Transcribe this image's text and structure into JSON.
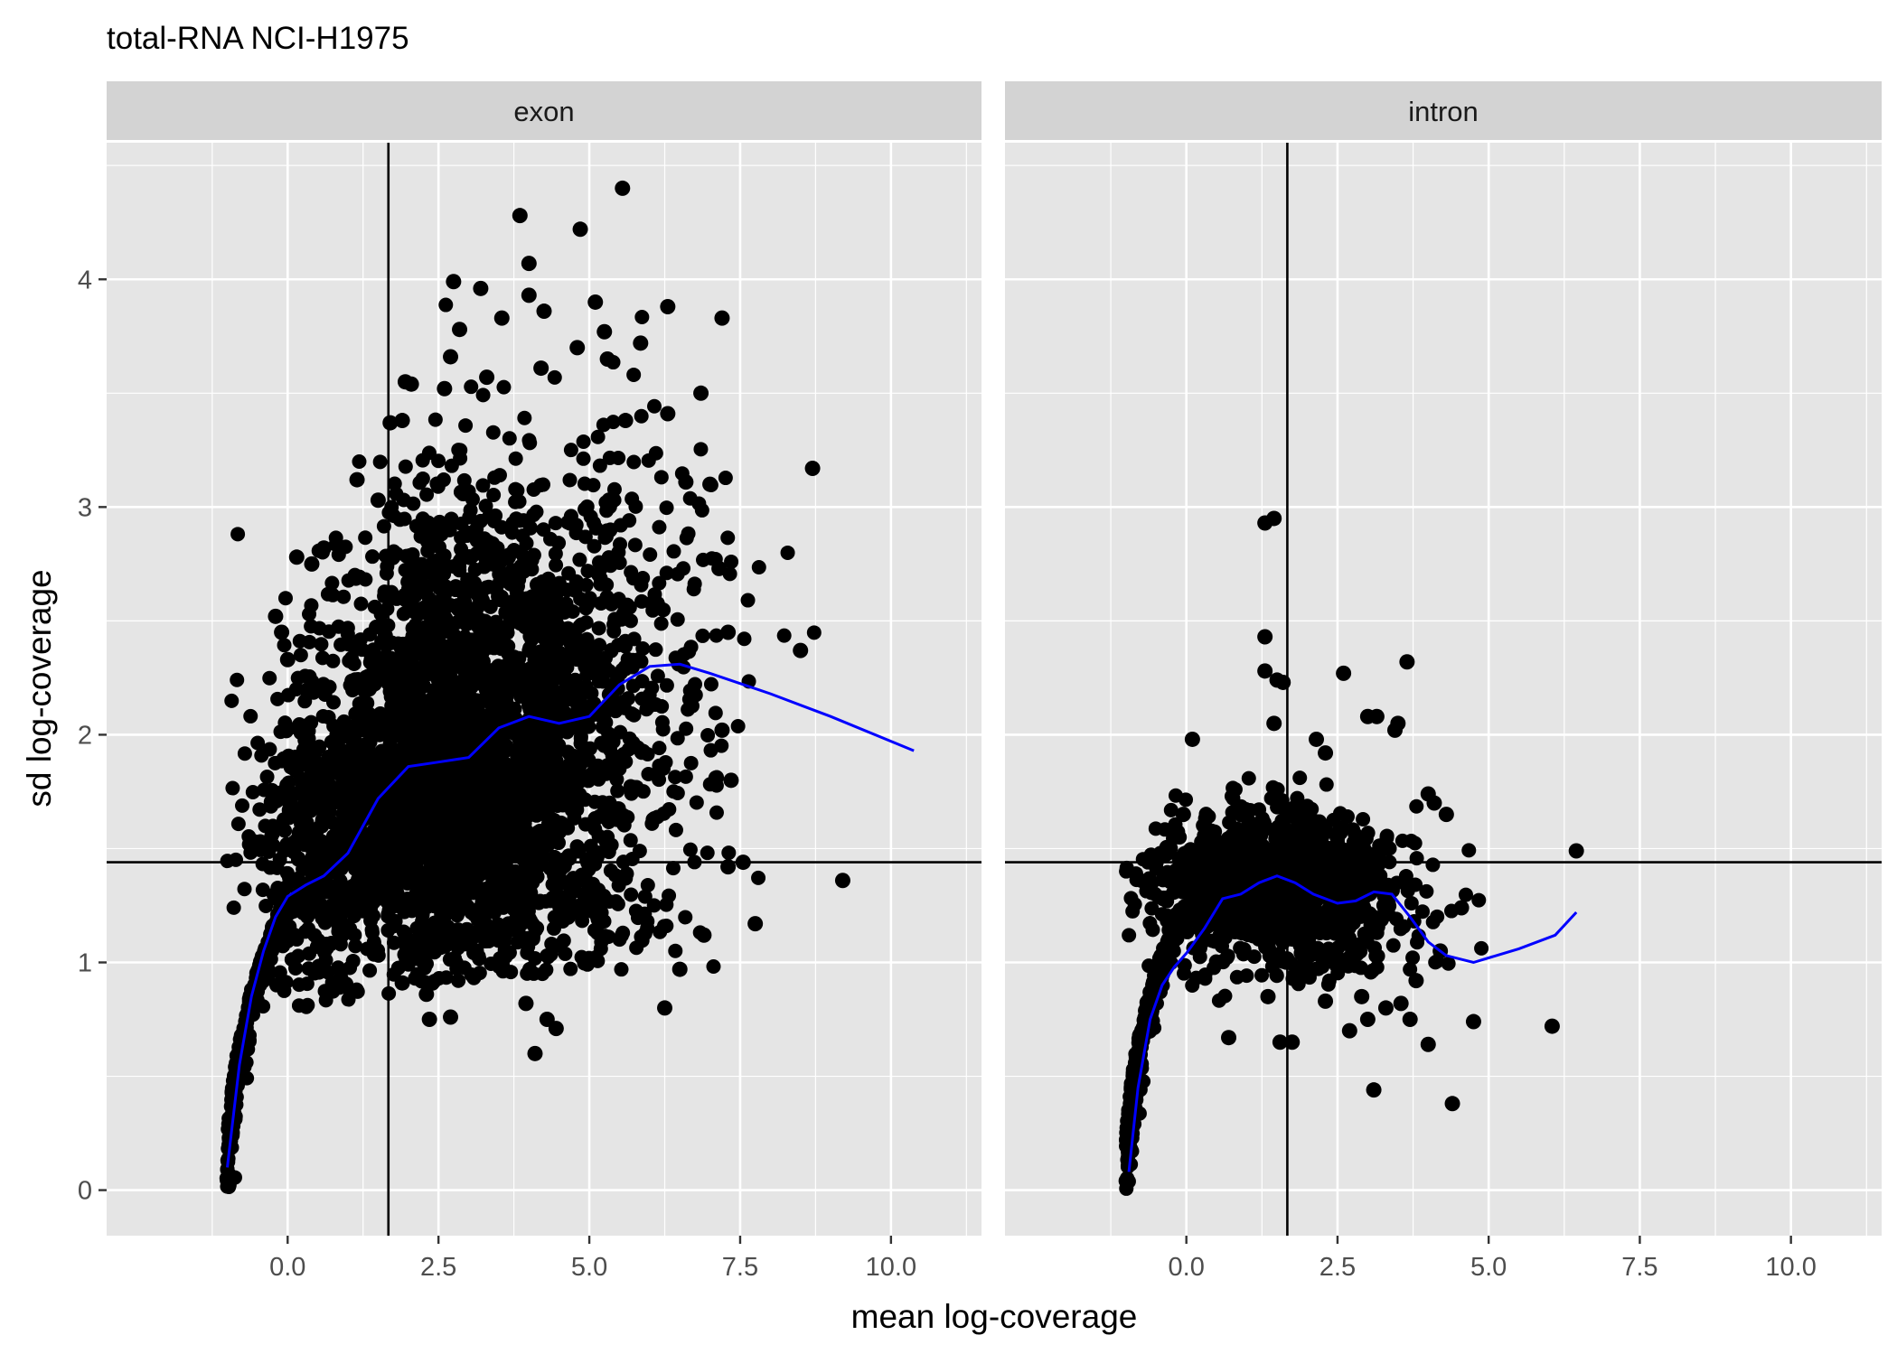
{
  "chart_data": {
    "type": "scatter",
    "title": "total-RNA NCI-H1975",
    "xlabel": "mean log-coverage",
    "ylabel": "sd log-coverage",
    "xlim": [
      -3.0,
      11.5
    ],
    "ylim": [
      -0.2,
      4.6
    ],
    "x_ticks": [
      0.0,
      2.5,
      5.0,
      7.5,
      10.0
    ],
    "x_tick_labels": [
      "0.0",
      "2.5",
      "5.0",
      "7.5",
      "10.0"
    ],
    "y_ticks": [
      0,
      1,
      2,
      3,
      4
    ],
    "y_tick_labels": [
      "0",
      "1",
      "2",
      "3",
      "4"
    ],
    "reference_lines": {
      "vertical_x": 1.67,
      "horizontal_y": 1.44
    },
    "colors": {
      "panel_bg": "#e5e5e5",
      "strip_bg": "#d3d3d3",
      "grid": "#ffffff",
      "points": "#000000",
      "smooth": "#0000ff",
      "ref_line": "#000000"
    },
    "grid": true,
    "legend": "none",
    "panels": [
      {
        "name": "exon",
        "smooth": [
          [
            -1.0,
            0.1
          ],
          [
            -0.8,
            0.55
          ],
          [
            -0.6,
            0.85
          ],
          [
            -0.4,
            1.05
          ],
          [
            -0.2,
            1.2
          ],
          [
            0.0,
            1.29
          ],
          [
            0.3,
            1.34
          ],
          [
            0.6,
            1.38
          ],
          [
            1.0,
            1.48
          ],
          [
            1.5,
            1.72
          ],
          [
            2.0,
            1.86
          ],
          [
            2.5,
            1.88
          ],
          [
            3.0,
            1.9
          ],
          [
            3.5,
            2.03
          ],
          [
            4.0,
            2.08
          ],
          [
            4.5,
            2.05
          ],
          [
            5.0,
            2.08
          ],
          [
            5.5,
            2.22
          ],
          [
            6.0,
            2.3
          ],
          [
            6.5,
            2.31
          ],
          [
            7.0,
            2.27
          ],
          [
            8.0,
            2.18
          ],
          [
            9.0,
            2.08
          ],
          [
            10.38,
            1.93
          ]
        ],
        "outliers": [
          [
            5.55,
            4.4
          ],
          [
            3.85,
            4.28
          ],
          [
            4.85,
            4.22
          ],
          [
            4.0,
            4.07
          ],
          [
            2.75,
            3.99
          ],
          [
            3.2,
            3.96
          ],
          [
            4.0,
            3.93
          ],
          [
            5.1,
            3.9
          ],
          [
            6.3,
            3.88
          ],
          [
            4.25,
            3.86
          ],
          [
            3.55,
            3.83
          ],
          [
            7.2,
            3.83
          ],
          [
            5.25,
            3.77
          ],
          [
            2.85,
            3.78
          ],
          [
            5.85,
            3.72
          ],
          [
            4.8,
            3.7
          ],
          [
            5.3,
            3.65
          ],
          [
            2.7,
            3.66
          ],
          [
            1.95,
            3.55
          ],
          [
            2.05,
            3.54
          ],
          [
            3.3,
            3.57
          ],
          [
            4.2,
            3.61
          ],
          [
            6.85,
            3.5
          ],
          [
            2.6,
            3.52
          ],
          [
            1.7,
            3.37
          ],
          [
            1.9,
            3.38
          ],
          [
            6.3,
            3.41
          ],
          [
            5.6,
            3.38
          ],
          [
            8.7,
            3.17
          ],
          [
            1.15,
            3.12
          ],
          [
            7.0,
            3.1
          ],
          [
            6.6,
            3.11
          ],
          [
            1.5,
            3.03
          ],
          [
            0.6,
            2.82
          ],
          [
            0.4,
            2.75
          ],
          [
            0.15,
            2.78
          ],
          [
            -0.2,
            2.52
          ],
          [
            0.0,
            2.33
          ],
          [
            -0.1,
            2.45
          ],
          [
            7.15,
            2.73
          ],
          [
            7.3,
            2.45
          ],
          [
            8.5,
            2.37
          ],
          [
            7.2,
            2.02
          ],
          [
            7.35,
            1.8
          ],
          [
            7.1,
            1.81
          ],
          [
            7.55,
            1.44
          ],
          [
            7.3,
            1.42
          ],
          [
            9.2,
            1.36
          ],
          [
            7.75,
            1.17
          ],
          [
            6.9,
            1.12
          ],
          [
            6.5,
            0.97
          ],
          [
            6.25,
            0.8
          ],
          [
            4.1,
            0.6
          ],
          [
            4.3,
            0.75
          ],
          [
            2.35,
            0.75
          ],
          [
            2.7,
            0.76
          ],
          [
            3.95,
            0.82
          ],
          [
            4.45,
            0.71
          ],
          [
            1.9,
            0.91
          ],
          [
            2.3,
            0.86
          ]
        ],
        "clusters": [
          {
            "cx": 3.0,
            "cy": 2.0,
            "sx": 1.2,
            "sy": 0.4,
            "n": 1300
          },
          {
            "cx": 1.8,
            "cy": 1.55,
            "sx": 0.9,
            "sy": 0.3,
            "n": 650
          },
          {
            "cx": 4.5,
            "cy": 2.1,
            "sx": 1.3,
            "sy": 0.55,
            "n": 420
          },
          {
            "cx": 3.4,
            "cy": 1.35,
            "sx": 1.1,
            "sy": 0.22,
            "n": 380
          },
          {
            "cx": 5.5,
            "cy": 2.2,
            "sx": 1.0,
            "sy": 0.55,
            "n": 200
          },
          {
            "cx": 0.5,
            "cy": 1.55,
            "sx": 0.6,
            "sy": 0.35,
            "n": 260
          },
          {
            "cx": 2.8,
            "cy": 2.7,
            "sx": 1.0,
            "sy": 0.3,
            "n": 200
          }
        ]
      },
      {
        "name": "intron",
        "smooth": [
          [
            -0.95,
            0.08
          ],
          [
            -0.8,
            0.45
          ],
          [
            -0.6,
            0.75
          ],
          [
            -0.4,
            0.9
          ],
          [
            -0.2,
            0.98
          ],
          [
            0.0,
            1.04
          ],
          [
            0.3,
            1.15
          ],
          [
            0.6,
            1.28
          ],
          [
            0.9,
            1.3
          ],
          [
            1.2,
            1.35
          ],
          [
            1.5,
            1.38
          ],
          [
            1.8,
            1.35
          ],
          [
            2.1,
            1.3
          ],
          [
            2.5,
            1.26
          ],
          [
            2.8,
            1.27
          ],
          [
            3.1,
            1.31
          ],
          [
            3.4,
            1.3
          ],
          [
            3.7,
            1.2
          ],
          [
            4.0,
            1.09
          ],
          [
            4.3,
            1.03
          ],
          [
            4.75,
            1.0
          ],
          [
            5.5,
            1.06
          ],
          [
            6.1,
            1.12
          ],
          [
            6.45,
            1.22
          ]
        ],
        "outliers": [
          [
            1.3,
            2.93
          ],
          [
            1.45,
            2.95
          ],
          [
            1.3,
            2.43
          ],
          [
            1.3,
            2.28
          ],
          [
            1.5,
            2.24
          ],
          [
            1.6,
            2.23
          ],
          [
            3.65,
            2.32
          ],
          [
            2.6,
            2.27
          ],
          [
            3.0,
            2.08
          ],
          [
            3.15,
            2.08
          ],
          [
            3.5,
            2.05
          ],
          [
            3.45,
            2.02
          ],
          [
            0.1,
            1.98
          ],
          [
            2.15,
            1.98
          ],
          [
            2.3,
            1.92
          ],
          [
            1.45,
            2.05
          ],
          [
            4.0,
            1.74
          ],
          [
            4.1,
            1.7
          ],
          [
            4.3,
            1.65
          ],
          [
            -0.05,
            1.65
          ],
          [
            6.45,
            1.49
          ],
          [
            4.55,
            1.24
          ],
          [
            4.75,
            0.74
          ],
          [
            4.4,
            0.38
          ],
          [
            6.05,
            0.72
          ],
          [
            3.1,
            0.44
          ],
          [
            4.0,
            0.64
          ],
          [
            0.7,
            0.67
          ],
          [
            1.55,
            0.65
          ],
          [
            1.75,
            0.65
          ],
          [
            3.3,
            0.8
          ],
          [
            2.9,
            0.85
          ],
          [
            3.0,
            0.75
          ],
          [
            2.7,
            0.7
          ],
          [
            3.7,
            0.75
          ],
          [
            4.2,
            1.05
          ],
          [
            3.8,
            0.92
          ],
          [
            3.55,
            0.82
          ],
          [
            2.3,
            0.83
          ],
          [
            1.35,
            0.85
          ]
        ],
        "clusters": [
          {
            "cx": 1.3,
            "cy": 1.38,
            "sx": 0.85,
            "sy": 0.14,
            "n": 700
          },
          {
            "cx": 0.6,
            "cy": 1.28,
            "sx": 0.6,
            "sy": 0.16,
            "n": 240
          },
          {
            "cx": 2.3,
            "cy": 1.25,
            "sx": 0.75,
            "sy": 0.2,
            "n": 240
          },
          {
            "cx": 3.1,
            "cy": 1.2,
            "sx": 0.7,
            "sy": 0.25,
            "n": 80
          }
        ]
      }
    ]
  }
}
